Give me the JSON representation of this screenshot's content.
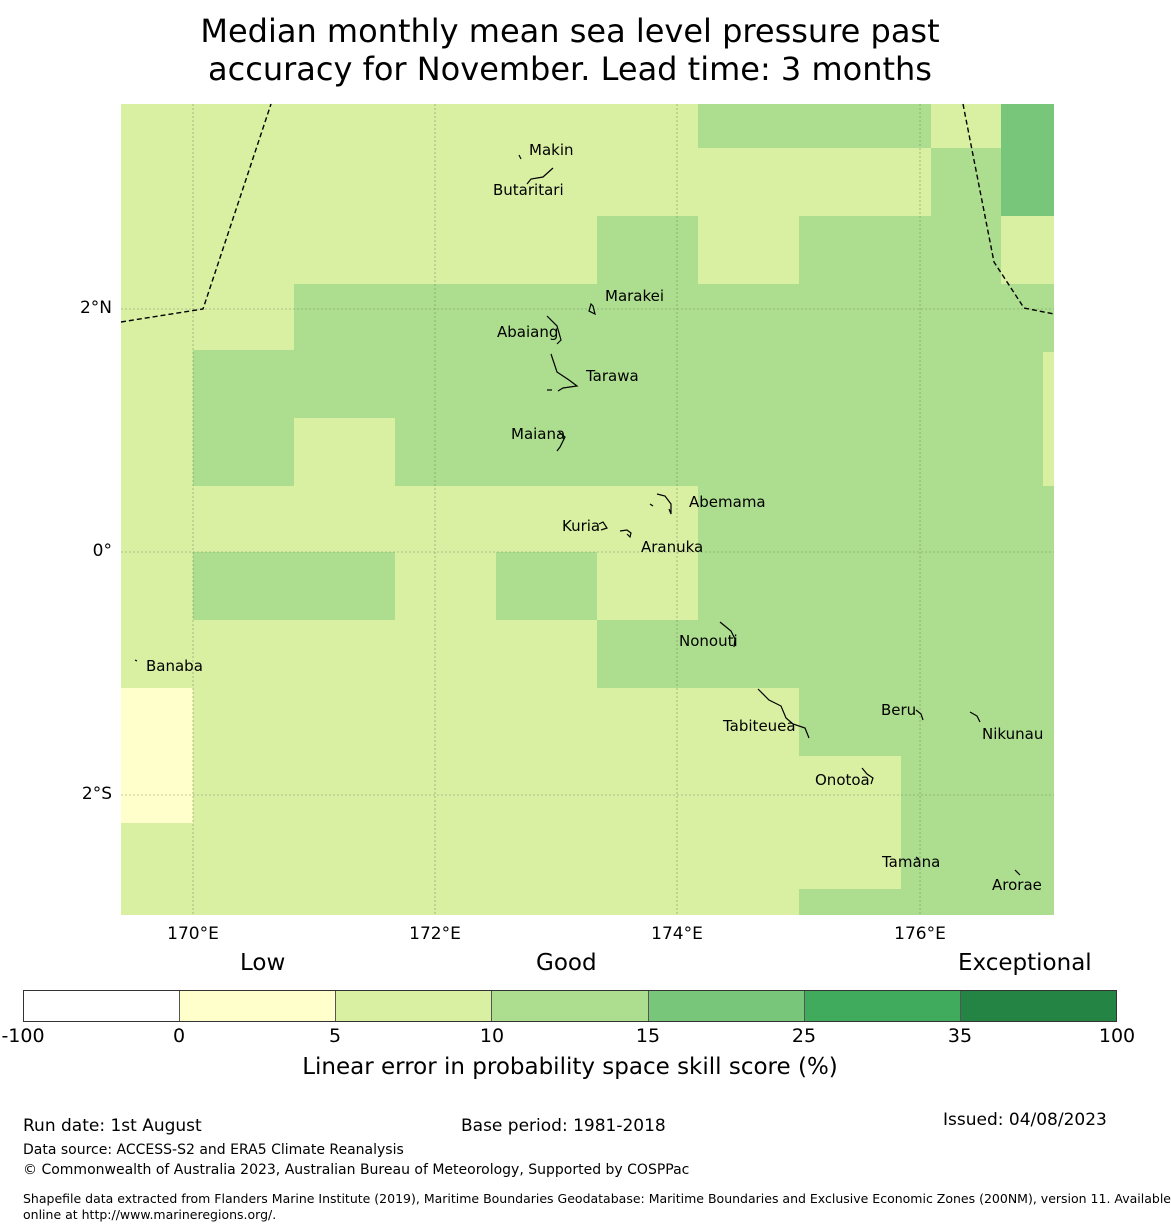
{
  "title": {
    "line1": "Median monthly mean sea level pressure past",
    "line2": "accuracy for November. Lead time: 3 months"
  },
  "map": {
    "x_ticks": [
      "170°E",
      "172°E",
      "174°E",
      "176°E"
    ],
    "y_ticks": [
      "2°N",
      "0°",
      "2°S"
    ],
    "colors": {
      "lt0": "#ffffff",
      "0to5": "#ffffcc",
      "5to10": "#d9f0a3",
      "10to15": "#addd8e",
      "15to25": "#78c679",
      "25to35": "#41ab5d",
      "35to100": "#238443"
    },
    "places": {
      "makin": "Makin",
      "butaritari": "Butaritari",
      "marakei": "Marakei",
      "abaiang": "Abaiang",
      "tarawa": "Tarawa",
      "maiana": "Maiana",
      "abemama": "Abemama",
      "kuria": "Kuria",
      "aranuka": "Aranuka",
      "nonouti": "Nonouti",
      "banaba": "Banaba",
      "tabiteuea": "Tabiteuea",
      "beru": "Beru",
      "nikunau": "Nikunau",
      "onotoa": "Onotoa",
      "tamana": "Tamana",
      "arorae": "Arorae"
    }
  },
  "legend": {
    "categories": [
      "Low",
      "Good",
      "Exceptional"
    ],
    "ticks": [
      "-100",
      "0",
      "5",
      "10",
      "15",
      "25",
      "35",
      "100"
    ],
    "colors": [
      "#ffffff",
      "#ffffcc",
      "#d9f0a3",
      "#addd8e",
      "#78c679",
      "#41ab5d",
      "#238443"
    ],
    "label": "Linear error in probability space skill score (%)"
  },
  "footer": {
    "run_date": "Run date: 1st August",
    "base_period": "Base period: 1981-2018",
    "issued": "Issued: 04/08/2023",
    "data_source": "Data source: ACCESS-S2 and ERA5 Climate Reanalysis",
    "copyright": "© Commonwealth of Australia 2023, Australian Bureau of Meteorology, Supported by COSPPac",
    "shapefile_line1": "Shapefile data extracted from Flanders Marine Institute (2019), Maritime Boundaries Geodatabase: Maritime Boundaries and Exclusive Economic Zones (200NM), version 11. Available",
    "shapefile_line2": "online at http://www.marineregions.org/."
  }
}
